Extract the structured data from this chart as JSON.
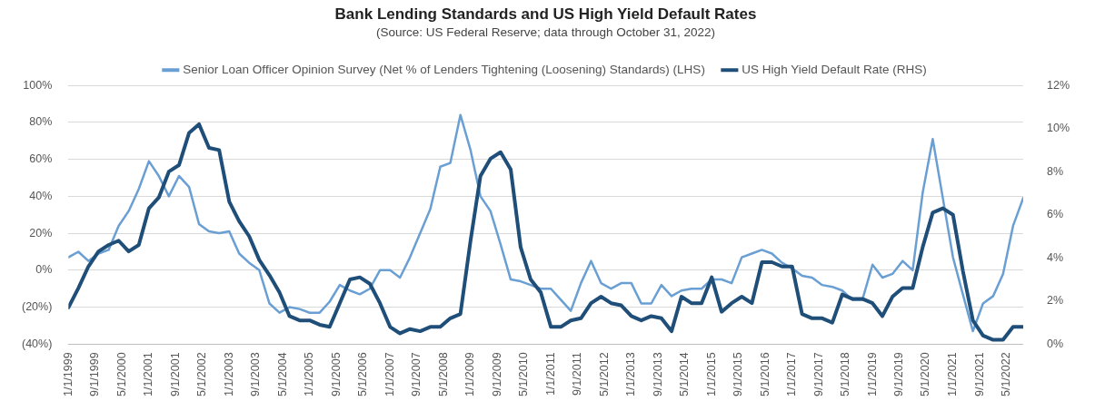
{
  "chart_data": {
    "type": "line",
    "title": "Bank Lending Standards and US High Yield Default Rates",
    "subtitle": "(Source: US Federal Reserve; data through October 31, 2022)",
    "x": [
      "1999-01-01",
      "1999-04-01",
      "1999-07-01",
      "1999-10-01",
      "2000-01-01",
      "2000-04-01",
      "2000-07-01",
      "2000-10-01",
      "2001-01-01",
      "2001-04-01",
      "2001-07-01",
      "2001-10-01",
      "2002-01-01",
      "2002-04-01",
      "2002-07-01",
      "2002-10-01",
      "2003-01-01",
      "2003-04-01",
      "2003-07-01",
      "2003-10-01",
      "2004-01-01",
      "2004-04-01",
      "2004-07-01",
      "2004-10-01",
      "2005-01-01",
      "2005-04-01",
      "2005-07-01",
      "2005-10-01",
      "2006-01-01",
      "2006-04-01",
      "2006-07-01",
      "2006-10-01",
      "2007-01-01",
      "2007-04-01",
      "2007-07-01",
      "2007-10-01",
      "2008-01-01",
      "2008-04-01",
      "2008-07-01",
      "2008-10-01",
      "2009-01-01",
      "2009-04-01",
      "2009-07-01",
      "2009-10-01",
      "2010-01-01",
      "2010-04-01",
      "2010-07-01",
      "2010-10-01",
      "2011-01-01",
      "2011-04-01",
      "2011-07-01",
      "2011-10-01",
      "2012-01-01",
      "2012-04-01",
      "2012-07-01",
      "2012-10-01",
      "2013-01-01",
      "2013-04-01",
      "2013-07-01",
      "2013-10-01",
      "2014-01-01",
      "2014-04-01",
      "2014-07-01",
      "2014-10-01",
      "2015-01-01",
      "2015-04-01",
      "2015-07-01",
      "2015-10-01",
      "2016-01-01",
      "2016-04-01",
      "2016-07-01",
      "2016-10-01",
      "2017-01-01",
      "2017-04-01",
      "2017-07-01",
      "2017-10-01",
      "2018-01-01",
      "2018-04-01",
      "2018-07-01",
      "2018-10-01",
      "2019-01-01",
      "2019-04-01",
      "2019-07-01",
      "2019-10-01",
      "2020-01-01",
      "2020-04-01",
      "2020-07-01",
      "2020-10-01",
      "2021-01-01",
      "2021-04-01",
      "2021-07-01",
      "2021-10-01",
      "2022-01-01",
      "2022-04-01",
      "2022-07-01",
      "2022-10-01"
    ],
    "series": [
      {
        "name": "Senior Loan Officer Opinion Survey (Net % of Lenders Tightening (Loosening) Standards) (LHS)",
        "color": "#6a9fd4",
        "values": [
          7,
          10,
          5,
          9,
          11,
          24,
          32,
          44,
          59,
          51,
          40,
          51,
          45,
          25,
          21,
          20,
          21,
          9,
          4,
          0,
          -18,
          -23,
          -20,
          -21,
          -23,
          -23,
          -17,
          -8,
          -11,
          -13,
          -10,
          0,
          0,
          -4,
          7,
          20,
          33,
          56,
          58,
          84,
          65,
          40,
          32,
          14,
          -5,
          -6,
          -8,
          -10,
          -10,
          -16,
          -22,
          -7,
          5,
          -7,
          -10,
          -7,
          -7,
          -18,
          -18,
          -8,
          -14,
          -11,
          -10,
          -10,
          -5,
          -5,
          -7,
          7,
          9,
          11,
          9,
          4,
          1,
          -3,
          -4,
          -8,
          -9,
          -11,
          -16,
          -16,
          3,
          -4,
          -2,
          5,
          0,
          42,
          71,
          39,
          7,
          -13,
          -33,
          -18,
          -14,
          -2,
          24,
          39
        ]
      },
      {
        "name": "US High Yield Default Rate (RHS)",
        "color": "#1f4e79",
        "axis": "y2",
        "values": [
          1.7,
          2.6,
          3.6,
          4.3,
          4.6,
          4.8,
          4.3,
          4.6,
          6.3,
          6.8,
          8.0,
          8.3,
          9.8,
          10.2,
          9.1,
          9.0,
          6.6,
          5.7,
          5.0,
          3.9,
          3.2,
          2.4,
          1.3,
          1.1,
          1.1,
          0.9,
          0.8,
          1.9,
          3.0,
          3.1,
          2.8,
          1.9,
          0.8,
          0.5,
          0.7,
          0.6,
          0.8,
          0.8,
          1.2,
          1.4,
          4.8,
          7.8,
          8.6,
          8.9,
          8.1,
          4.5,
          3.0,
          2.4,
          0.8,
          0.8,
          1.1,
          1.2,
          1.9,
          2.2,
          1.9,
          1.8,
          1.3,
          1.1,
          1.3,
          1.2,
          0.6,
          2.2,
          1.9,
          1.9,
          3.1,
          1.5,
          1.9,
          2.2,
          1.9,
          3.8,
          3.8,
          3.6,
          3.6,
          1.4,
          1.2,
          1.2,
          1.0,
          2.3,
          2.1,
          2.1,
          1.9,
          1.3,
          2.2,
          2.6,
          2.6,
          4.5,
          6.1,
          6.3,
          6.0,
          3.4,
          1.1,
          0.4,
          0.2,
          0.2,
          0.8,
          0.8
        ]
      }
    ],
    "xlim": [
      "1999-01-01",
      "2022-10-01"
    ],
    "xticks": [
      {
        "value": "1999-01-01",
        "label": "1/1/1999"
      },
      {
        "value": "1999-09-01",
        "label": "9/1/1999"
      },
      {
        "value": "2000-05-01",
        "label": "5/1/2000"
      },
      {
        "value": "2001-01-01",
        "label": "1/1/2001"
      },
      {
        "value": "2001-09-01",
        "label": "9/1/2001"
      },
      {
        "value": "2002-05-01",
        "label": "5/1/2002"
      },
      {
        "value": "2003-01-01",
        "label": "1/1/2003"
      },
      {
        "value": "2003-09-01",
        "label": "9/1/2003"
      },
      {
        "value": "2004-05-01",
        "label": "5/1/2004"
      },
      {
        "value": "2005-01-01",
        "label": "1/1/2005"
      },
      {
        "value": "2005-09-01",
        "label": "9/1/2005"
      },
      {
        "value": "2006-05-01",
        "label": "5/1/2006"
      },
      {
        "value": "2007-01-01",
        "label": "1/1/2007"
      },
      {
        "value": "2007-09-01",
        "label": "9/1/2007"
      },
      {
        "value": "2008-05-01",
        "label": "5/1/2008"
      },
      {
        "value": "2009-01-01",
        "label": "1/1/2009"
      },
      {
        "value": "2009-09-01",
        "label": "9/1/2009"
      },
      {
        "value": "2010-05-01",
        "label": "5/1/2010"
      },
      {
        "value": "2011-01-01",
        "label": "1/1/2011"
      },
      {
        "value": "2011-09-01",
        "label": "9/1/2011"
      },
      {
        "value": "2012-05-01",
        "label": "5/1/2012"
      },
      {
        "value": "2013-01-01",
        "label": "1/1/2013"
      },
      {
        "value": "2013-09-01",
        "label": "9/1/2013"
      },
      {
        "value": "2014-05-01",
        "label": "5/1/2014"
      },
      {
        "value": "2015-01-01",
        "label": "1/1/2015"
      },
      {
        "value": "2015-09-01",
        "label": "9/1/2015"
      },
      {
        "value": "2016-05-01",
        "label": "5/1/2016"
      },
      {
        "value": "2017-01-01",
        "label": "1/1/2017"
      },
      {
        "value": "2017-09-01",
        "label": "9/1/2017"
      },
      {
        "value": "2018-05-01",
        "label": "5/1/2018"
      },
      {
        "value": "2019-01-01",
        "label": "1/1/2019"
      },
      {
        "value": "2019-09-01",
        "label": "9/1/2019"
      },
      {
        "value": "2020-05-01",
        "label": "5/1/2020"
      },
      {
        "value": "2021-01-01",
        "label": "1/1/2021"
      },
      {
        "value": "2021-09-01",
        "label": "9/1/2021"
      },
      {
        "value": "2022-05-01",
        "label": "5/1/2022"
      }
    ],
    "ylim": [
      -40,
      100
    ],
    "yticks": [
      {
        "value": -40,
        "label": "(40%)"
      },
      {
        "value": -20,
        "label": "(20%)"
      },
      {
        "value": 0,
        "label": "0%"
      },
      {
        "value": 20,
        "label": "20%"
      },
      {
        "value": 40,
        "label": "40%"
      },
      {
        "value": 60,
        "label": "60%"
      },
      {
        "value": 80,
        "label": "80%"
      },
      {
        "value": 100,
        "label": "100%"
      }
    ],
    "y2lim": [
      0,
      12
    ],
    "y2ticks": [
      {
        "value": 0,
        "label": "0%"
      },
      {
        "value": 2,
        "label": "2%"
      },
      {
        "value": 4,
        "label": "4%"
      },
      {
        "value": 6,
        "label": "6%"
      },
      {
        "value": 8,
        "label": "8%"
      },
      {
        "value": 10,
        "label": "10%"
      },
      {
        "value": 12,
        "label": "12%"
      }
    ],
    "grid": "y",
    "legend": "top",
    "marker": "none",
    "line_style": "solid"
  }
}
